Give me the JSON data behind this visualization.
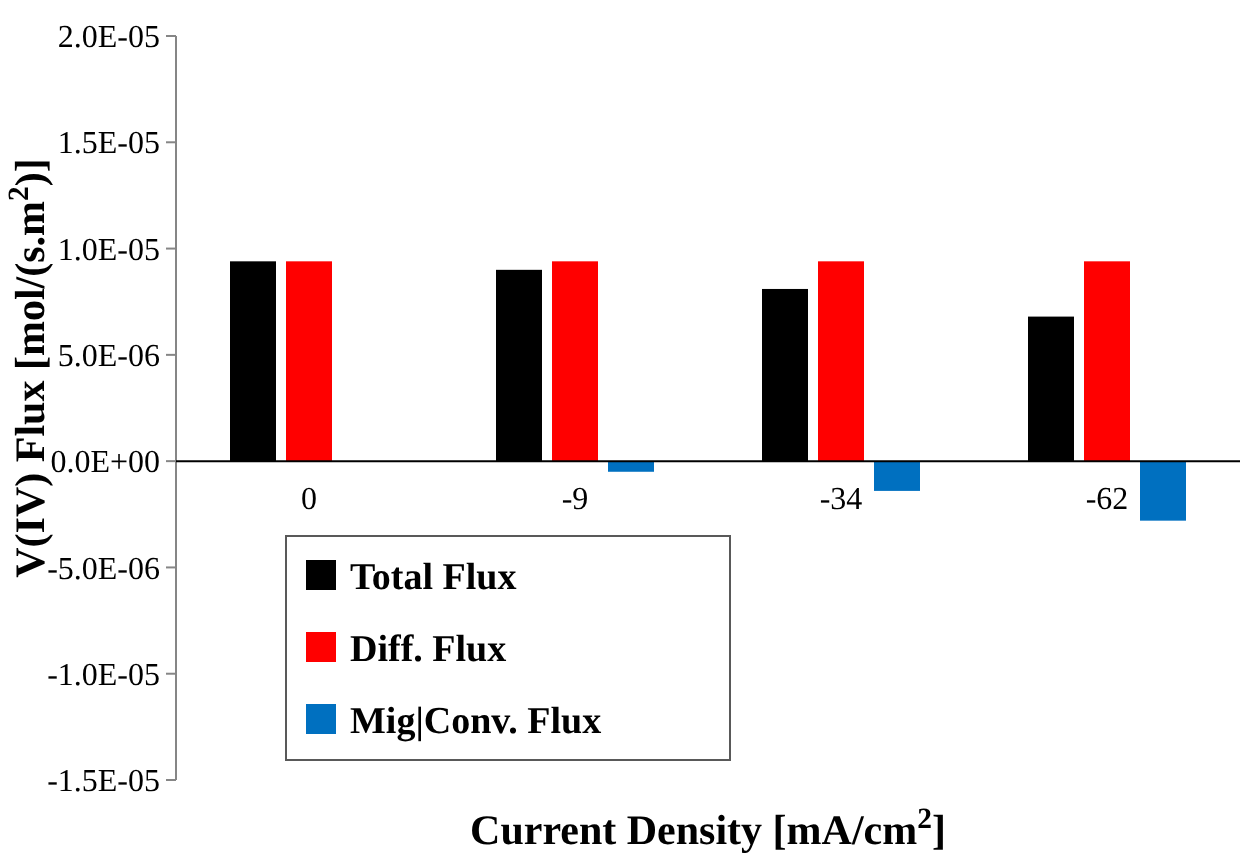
{
  "chart_data": {
    "type": "bar",
    "xlabel": "Current Density [mA/cm$^{2}$]",
    "ylabel": "V(IV) Flux [mol/(s.m$^{2}$)]",
    "categories": [
      "0",
      "-9",
      "-34",
      "-62"
    ],
    "series": [
      {
        "name": "Total Flux",
        "color": "#000000",
        "values": [
          9.4e-06,
          9e-06,
          8.1e-06,
          6.8e-06
        ]
      },
      {
        "name": "Diff. Flux",
        "color": "#ff0000",
        "values": [
          9.4e-06,
          9.4e-06,
          9.4e-06,
          9.4e-06
        ]
      },
      {
        "name": "Mig|Conv. Flux",
        "color": "#0070c0",
        "values": [
          0,
          -5e-07,
          -1.4e-06,
          -2.8e-06
        ]
      }
    ],
    "ylim": [
      -1.5e-05,
      2e-05
    ],
    "yticks": [
      {
        "value": -1.5e-05,
        "label": "-1.5E-05"
      },
      {
        "value": -1e-05,
        "label": "-1.0E-05"
      },
      {
        "value": -5e-06,
        "label": "-5.0E-06"
      },
      {
        "value": 0,
        "label": "0.0E+00"
      },
      {
        "value": 5e-06,
        "label": "5.0E-06"
      },
      {
        "value": 1e-05,
        "label": "1.0E-05"
      },
      {
        "value": 1.5e-05,
        "label": "1.5E-05"
      },
      {
        "value": 2e-05,
        "label": "2.0E-05"
      }
    ],
    "grid": false,
    "legend": "bottom left"
  }
}
